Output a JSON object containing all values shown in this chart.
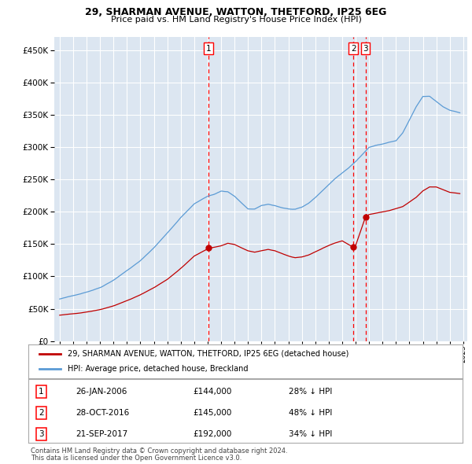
{
  "title1": "29, SHARMAN AVENUE, WATTON, THETFORD, IP25 6EG",
  "title2": "Price paid vs. HM Land Registry's House Price Index (HPI)",
  "background_color": "#ffffff",
  "plot_bg_color": "#dce6f1",
  "grid_color": "#ffffff",
  "hpi_color": "#5b9bd5",
  "price_color": "#c00000",
  "vline_color": "#ff0000",
  "transactions": [
    {
      "num": 1,
      "date_val": 2006.08,
      "price": 144000,
      "label": "1"
    },
    {
      "num": 2,
      "date_val": 2016.83,
      "price": 145000,
      "label": "2"
    },
    {
      "num": 3,
      "date_val": 2017.73,
      "price": 192000,
      "label": "3"
    }
  ],
  "legend_entry1": "29, SHARMAN AVENUE, WATTON, THETFORD, IP25 6EG (detached house)",
  "legend_entry2": "HPI: Average price, detached house, Breckland",
  "table_rows": [
    {
      "num": "1",
      "date": "26-JAN-2006",
      "price": "£144,000",
      "pct": "28% ↓ HPI"
    },
    {
      "num": "2",
      "date": "28-OCT-2016",
      "price": "£145,000",
      "pct": "48% ↓ HPI"
    },
    {
      "num": "3",
      "date": "21-SEP-2017",
      "price": "£192,000",
      "pct": "34% ↓ HPI"
    }
  ],
  "footnote1": "Contains HM Land Registry data © Crown copyright and database right 2024.",
  "footnote2": "This data is licensed under the Open Government Licence v3.0.",
  "ylim": [
    0,
    470000
  ],
  "yticks": [
    0,
    50000,
    100000,
    150000,
    200000,
    250000,
    300000,
    350000,
    400000,
    450000
  ],
  "xlim_left": 1994.6,
  "xlim_right": 2025.3
}
